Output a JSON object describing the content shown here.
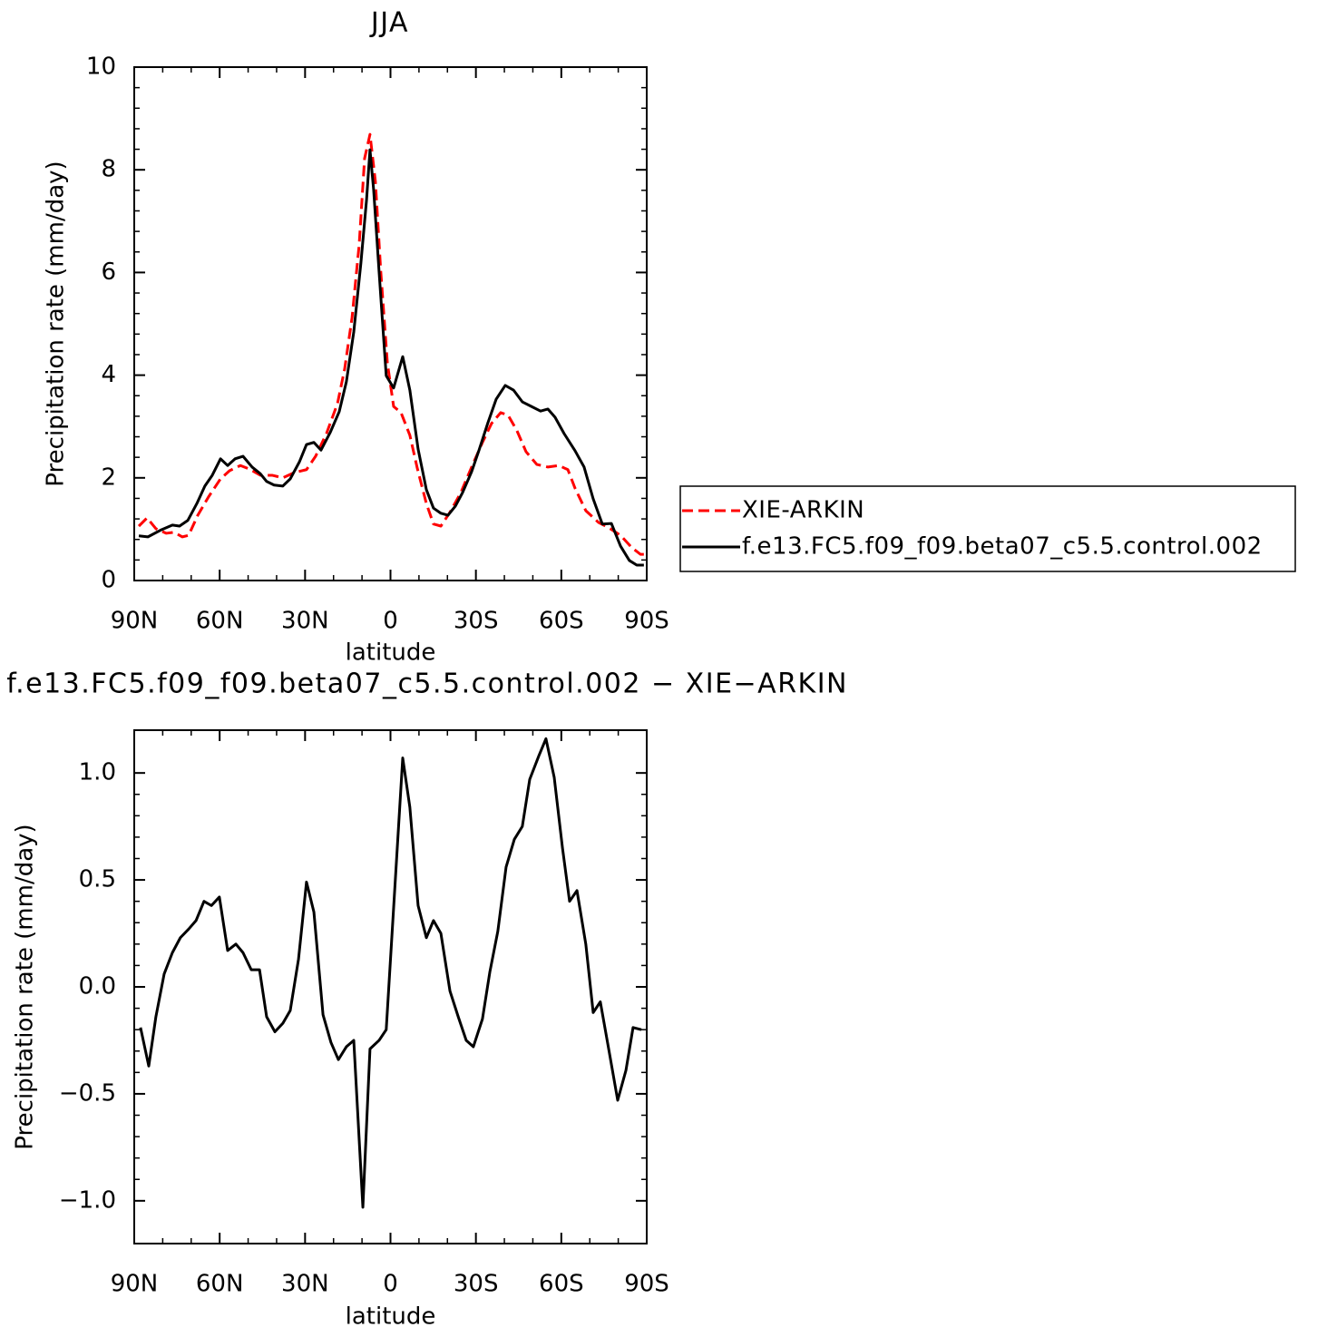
{
  "chart_data": [
    {
      "type": "line",
      "title": "JJA",
      "xlabel": "latitude",
      "ylabel": "Precipitation rate (mm/day)",
      "xlim": [
        90,
        -90
      ],
      "ylim": [
        0,
        10
      ],
      "xticks": [
        {
          "value": 90,
          "label": "90N"
        },
        {
          "value": 60,
          "label": "60N"
        },
        {
          "value": 30,
          "label": "30N"
        },
        0,
        {
          "value": -30,
          "label": "30S"
        },
        {
          "value": -60,
          "label": "60S"
        },
        {
          "value": -90,
          "label": "90S"
        }
      ],
      "yticks": [
        0,
        2,
        4,
        6,
        8,
        10
      ],
      "legend": "right",
      "series": [
        {
          "name": "XIE-ARKIN",
          "color": "#ff0000",
          "linestyle": "dashed",
          "x": [
            88.4,
            85.5,
            82.4,
            78.8,
            76.0,
            73.1,
            70.9,
            67.7,
            63.9,
            59.7,
            56.5,
            52.7,
            49.5,
            45.7,
            41.6,
            37.8,
            33.9,
            29.5,
            26.3,
            22.5,
            18.6,
            16.1,
            13.5,
            11.0,
            9.1,
            7.2,
            5.3,
            3.4,
            1.1,
            -1.1,
            -3.7,
            -6.8,
            -9.4,
            -12.6,
            -15.1,
            -17.7,
            -20.9,
            -24.7,
            -28.5,
            -32.3,
            -35.5,
            -38.7,
            -41.3,
            -44.4,
            -47.6,
            -51.4,
            -55.3,
            -59.1,
            -62.3,
            -64.8,
            -68.6,
            -73.1,
            -76.9,
            -80.8,
            -84.6,
            -87.8,
            -89.7
          ],
          "values": [
            1.06,
            1.22,
            1.01,
            0.92,
            0.94,
            0.85,
            0.88,
            1.27,
            1.63,
            1.98,
            2.14,
            2.24,
            2.17,
            2.05,
            2.05,
            2.0,
            2.1,
            2.16,
            2.42,
            2.86,
            3.45,
            4.12,
            5.12,
            6.54,
            8.22,
            8.69,
            7.77,
            6.01,
            4.24,
            3.39,
            3.27,
            2.83,
            2.19,
            1.5,
            1.1,
            1.06,
            1.33,
            1.71,
            2.21,
            2.69,
            3.06,
            3.27,
            3.22,
            2.92,
            2.51,
            2.26,
            2.21,
            2.24,
            2.16,
            1.8,
            1.36,
            1.13,
            1.02,
            0.88,
            0.65,
            0.51,
            0.51
          ]
        },
        {
          "name": "f.e13.FC5.f09_f09.beta07_c5.5.control.002",
          "color": "#000000",
          "linestyle": "solid",
          "x": [
            88.4,
            85.2,
            80.4,
            76.6,
            74.1,
            71.2,
            68.0,
            65.2,
            62.6,
            59.7,
            57.2,
            54.6,
            51.8,
            48.6,
            45.7,
            43.5,
            40.9,
            37.8,
            35.2,
            32.0,
            29.5,
            26.9,
            24.4,
            21.2,
            18.0,
            15.5,
            12.9,
            10.4,
            8.4,
            7.2,
            5.9,
            4.0,
            1.5,
            -1.1,
            -4.3,
            -6.8,
            -9.7,
            -12.6,
            -15.1,
            -17.7,
            -20.2,
            -22.8,
            -25.3,
            -28.5,
            -31.1,
            -34.2,
            -37.1,
            -40.3,
            -43.2,
            -46.3,
            -49.5,
            -52.7,
            -55.3,
            -57.8,
            -61.0,
            -64.8,
            -68.0,
            -71.2,
            -74.4,
            -77.6,
            -80.8,
            -83.9,
            -86.5,
            -89.0
          ],
          "values": [
            0.87,
            0.85,
            0.99,
            1.08,
            1.06,
            1.17,
            1.5,
            1.84,
            2.05,
            2.37,
            2.24,
            2.37,
            2.42,
            2.21,
            2.08,
            1.93,
            1.86,
            1.84,
            1.98,
            2.31,
            2.65,
            2.69,
            2.54,
            2.88,
            3.29,
            3.87,
            4.84,
            6.18,
            7.42,
            8.39,
            7.6,
            6.01,
            3.99,
            3.75,
            4.36,
            3.71,
            2.56,
            1.77,
            1.41,
            1.31,
            1.27,
            1.45,
            1.71,
            2.12,
            2.54,
            3.07,
            3.53,
            3.8,
            3.71,
            3.48,
            3.39,
            3.3,
            3.34,
            3.18,
            2.86,
            2.53,
            2.21,
            1.59,
            1.1,
            1.11,
            0.67,
            0.39,
            0.3,
            0.3
          ]
        }
      ]
    },
    {
      "type": "line",
      "title": "f.e13.FC5.f09_f09.beta07_c5.5.control.002 − XIE−ARKIN",
      "xlabel": "latitude",
      "ylabel": "Precipitation rate (mm/day)",
      "xlim": [
        90,
        -90
      ],
      "ylim": [
        -1.2,
        1.2
      ],
      "xticks": [
        {
          "value": 90,
          "label": "90N"
        },
        {
          "value": 60,
          "label": "60N"
        },
        {
          "value": 30,
          "label": "30N"
        },
        0,
        {
          "value": -30,
          "label": "30S"
        },
        {
          "value": -60,
          "label": "60S"
        },
        {
          "value": -90,
          "label": "90S"
        }
      ],
      "yticks": [
        {
          "value": -1,
          "label": "−1.0"
        },
        {
          "value": -0.5,
          "label": "−0.5"
        },
        {
          "value": 0,
          "label": "0.0"
        },
        0.5,
        {
          "value": 1,
          "label": "1.0"
        }
      ],
      "series": [
        {
          "color": "#000000",
          "linestyle": "solid",
          "x": [
            87.8,
            84.9,
            82.4,
            79.5,
            76.6,
            73.8,
            70.9,
            68.3,
            65.5,
            62.9,
            60.1,
            57.2,
            54.3,
            51.8,
            48.9,
            46.0,
            43.5,
            40.6,
            37.8,
            35.2,
            32.3,
            29.5,
            26.9,
            23.7,
            20.9,
            18.3,
            15.5,
            12.9,
            9.7,
            7.2,
            4.0,
            1.5,
            -4.3,
            -6.8,
            -9.7,
            -12.6,
            -15.1,
            -17.7,
            -20.9,
            -23.8,
            -26.6,
            -29.1,
            -32.3,
            -34.9,
            -37.7,
            -40.6,
            -43.5,
            -46.3,
            -48.9,
            -52.1,
            -54.6,
            -57.5,
            -60.4,
            -62.9,
            -65.5,
            -68.6,
            -71.2,
            -73.7,
            -76.9,
            -79.8,
            -82.7,
            -85.2,
            -88.1
          ],
          "values": [
            -0.19,
            -0.37,
            -0.14,
            0.06,
            0.16,
            0.23,
            0.27,
            0.31,
            0.4,
            0.38,
            0.42,
            0.17,
            0.2,
            0.16,
            0.08,
            0.08,
            -0.14,
            -0.21,
            -0.17,
            -0.11,
            0.13,
            0.49,
            0.35,
            -0.13,
            -0.26,
            -0.34,
            -0.28,
            -0.25,
            -1.03,
            -0.29,
            -0.25,
            -0.2,
            1.07,
            0.84,
            0.38,
            0.23,
            0.31,
            0.25,
            -0.02,
            -0.14,
            -0.25,
            -0.28,
            -0.15,
            0.07,
            0.26,
            0.56,
            0.69,
            0.75,
            0.97,
            1.08,
            1.16,
            0.98,
            0.65,
            0.4,
            0.45,
            0.2,
            -0.12,
            -0.07,
            -0.31,
            -0.53,
            -0.39,
            -0.19,
            -0.2
          ]
        }
      ]
    }
  ]
}
